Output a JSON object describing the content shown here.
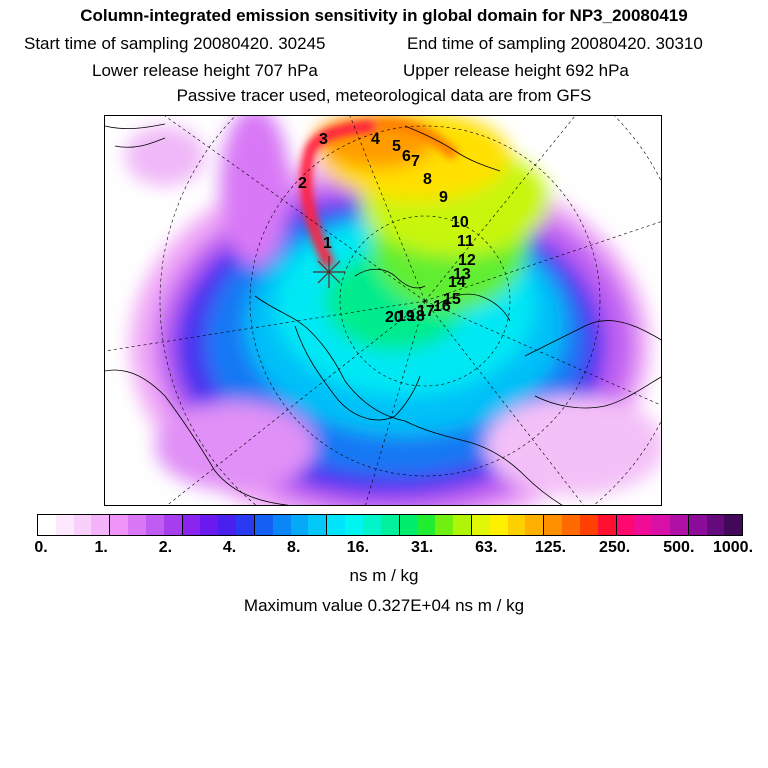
{
  "header": {
    "title": "Column-integrated emission sensitivity in global domain for NP3_20080419",
    "start_sampling": "Start time of sampling 20080420. 30245",
    "end_sampling": "End time of sampling 20080420. 30310",
    "lower_release": "Lower release height  707 hPa",
    "upper_release": "Upper release height  692 hPa",
    "tracer_note": "Passive tracer used, meteorological data are from GFS"
  },
  "map": {
    "trajectory_labels": [
      "1",
      "2",
      "3",
      "4",
      "5",
      "6",
      "7",
      "8",
      "9",
      "10",
      "11",
      "12",
      "13",
      "14",
      "15",
      "16",
      "17",
      "18",
      "19",
      "20"
    ],
    "release_marker": "release-point-star"
  },
  "colorbar": {
    "colors": [
      "#ffffff",
      "#fde8fd",
      "#f9cffb",
      "#f5b3f9",
      "#ee95f7",
      "#d977f5",
      "#c05cf2",
      "#a63ef0",
      "#8a24ee",
      "#6a1aee",
      "#4a20f0",
      "#2a3af2",
      "#1460f4",
      "#0a86f6",
      "#06a8f8",
      "#04c8fa",
      "#00e4fc",
      "#00f4f0",
      "#00f4c8",
      "#00f09c",
      "#00ec6c",
      "#20ec30",
      "#70f010",
      "#b0f408",
      "#e0f808",
      "#fff000",
      "#ffd000",
      "#ffb000",
      "#ff9000",
      "#ff6a00",
      "#ff4000",
      "#ff1030",
      "#ff0870",
      "#f00c96",
      "#d810a8",
      "#b010a6",
      "#8a0c98",
      "#640a7c",
      "#42085a"
    ],
    "tick_labels": [
      "0.",
      "1.",
      "2.",
      "4.",
      "8.",
      "16.",
      "31.",
      "63.",
      "125.",
      "250.",
      "500.",
      "1000."
    ],
    "unit": "ns m / kg"
  },
  "footer": {
    "maximum_value": "Maximum value  0.327E+04 ns m / kg"
  }
}
